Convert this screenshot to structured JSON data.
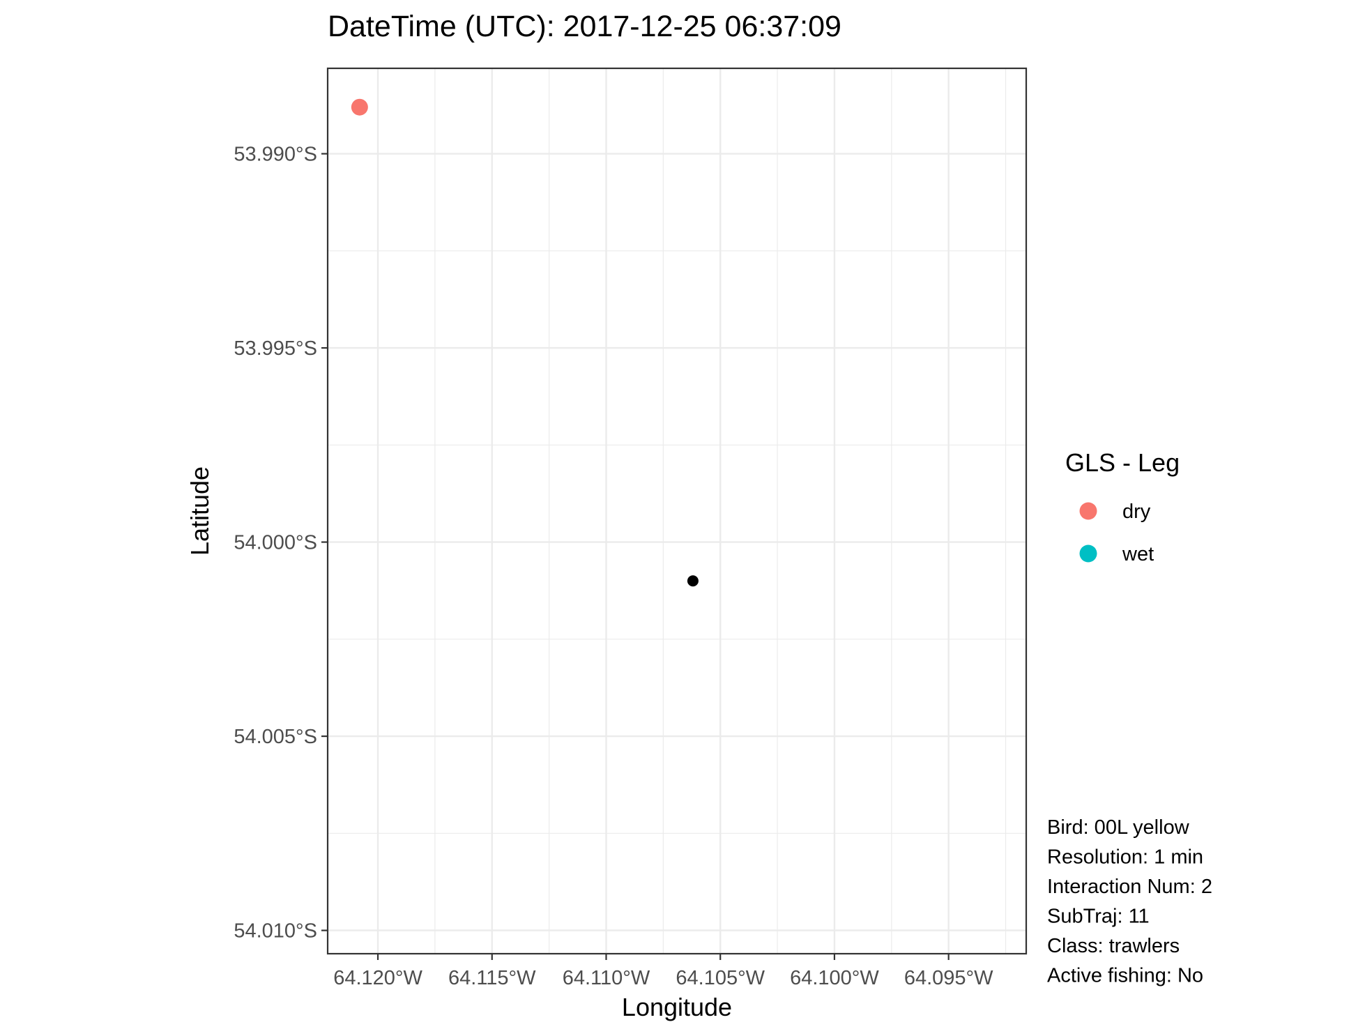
{
  "chart_data": {
    "type": "scatter",
    "title": "DateTime (UTC): 2017-12-25 06:37:09",
    "xlabel": "Longitude",
    "ylabel": "Latitude",
    "xlim": [
      -64.1222,
      -64.0916
    ],
    "ylim": [
      -54.0106,
      -53.9878
    ],
    "x_ticks": [
      -64.12,
      -64.115,
      -64.11,
      -64.105,
      -64.1,
      -64.095
    ],
    "x_tick_labels": [
      "64.120°W",
      "64.115°W",
      "64.110°W",
      "64.105°W",
      "64.100°W",
      "64.095°W"
    ],
    "y_ticks": [
      -53.99,
      -53.995,
      -54.0,
      -54.005,
      -54.01
    ],
    "y_tick_labels": [
      "53.990°S",
      "53.995°S",
      "54.000°S",
      "54.005°S",
      "54.010°S"
    ],
    "grid": true,
    "points": [
      {
        "x": -64.1208,
        "y": -53.9888,
        "color": "#F8766D",
        "size": "large"
      },
      {
        "x": -64.1062,
        "y": -54.001,
        "color": "#000000",
        "size": "small"
      }
    ],
    "legend": {
      "title": "GLS - Leg",
      "position": "right",
      "entries": [
        {
          "label": "dry",
          "color": "#F8766D"
        },
        {
          "label": "wet",
          "color": "#00BFC4"
        }
      ]
    },
    "annotations": [
      "Bird: 00L yellow",
      "Resolution: 1 min",
      "Interaction Num: 2",
      "SubTraj: 11",
      "Class: trawlers",
      "Active fishing: No"
    ]
  }
}
